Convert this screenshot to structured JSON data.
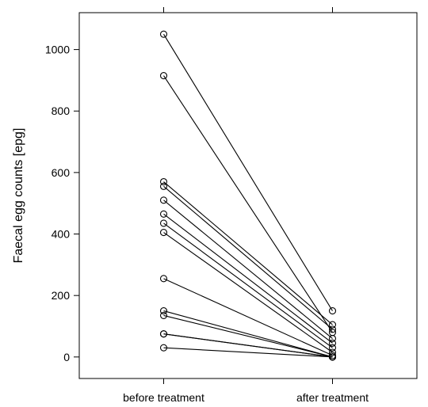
{
  "chart_data": {
    "type": "line",
    "title": "",
    "xlabel": "",
    "ylabel": "Faecal egg counts [epg]",
    "categories": [
      "before treatment",
      "after treatment"
    ],
    "ylim": [
      -70,
      1120
    ],
    "yticks": [
      0,
      200,
      400,
      600,
      800,
      1000
    ],
    "xlim": [
      0.5,
      2.5
    ],
    "grid": false,
    "legend": "none",
    "marker": "open-circle",
    "line_color": "#000000",
    "pairs": [
      [
        1050,
        150
      ],
      [
        915,
        80
      ],
      [
        570,
        105
      ],
      [
        555,
        90
      ],
      [
        510,
        60
      ],
      [
        465,
        45
      ],
      [
        435,
        30
      ],
      [
        405,
        15
      ],
      [
        255,
        5
      ],
      [
        150,
        0
      ],
      [
        135,
        0
      ],
      [
        75,
        0
      ],
      [
        75,
        0
      ],
      [
        30,
        0
      ]
    ]
  }
}
